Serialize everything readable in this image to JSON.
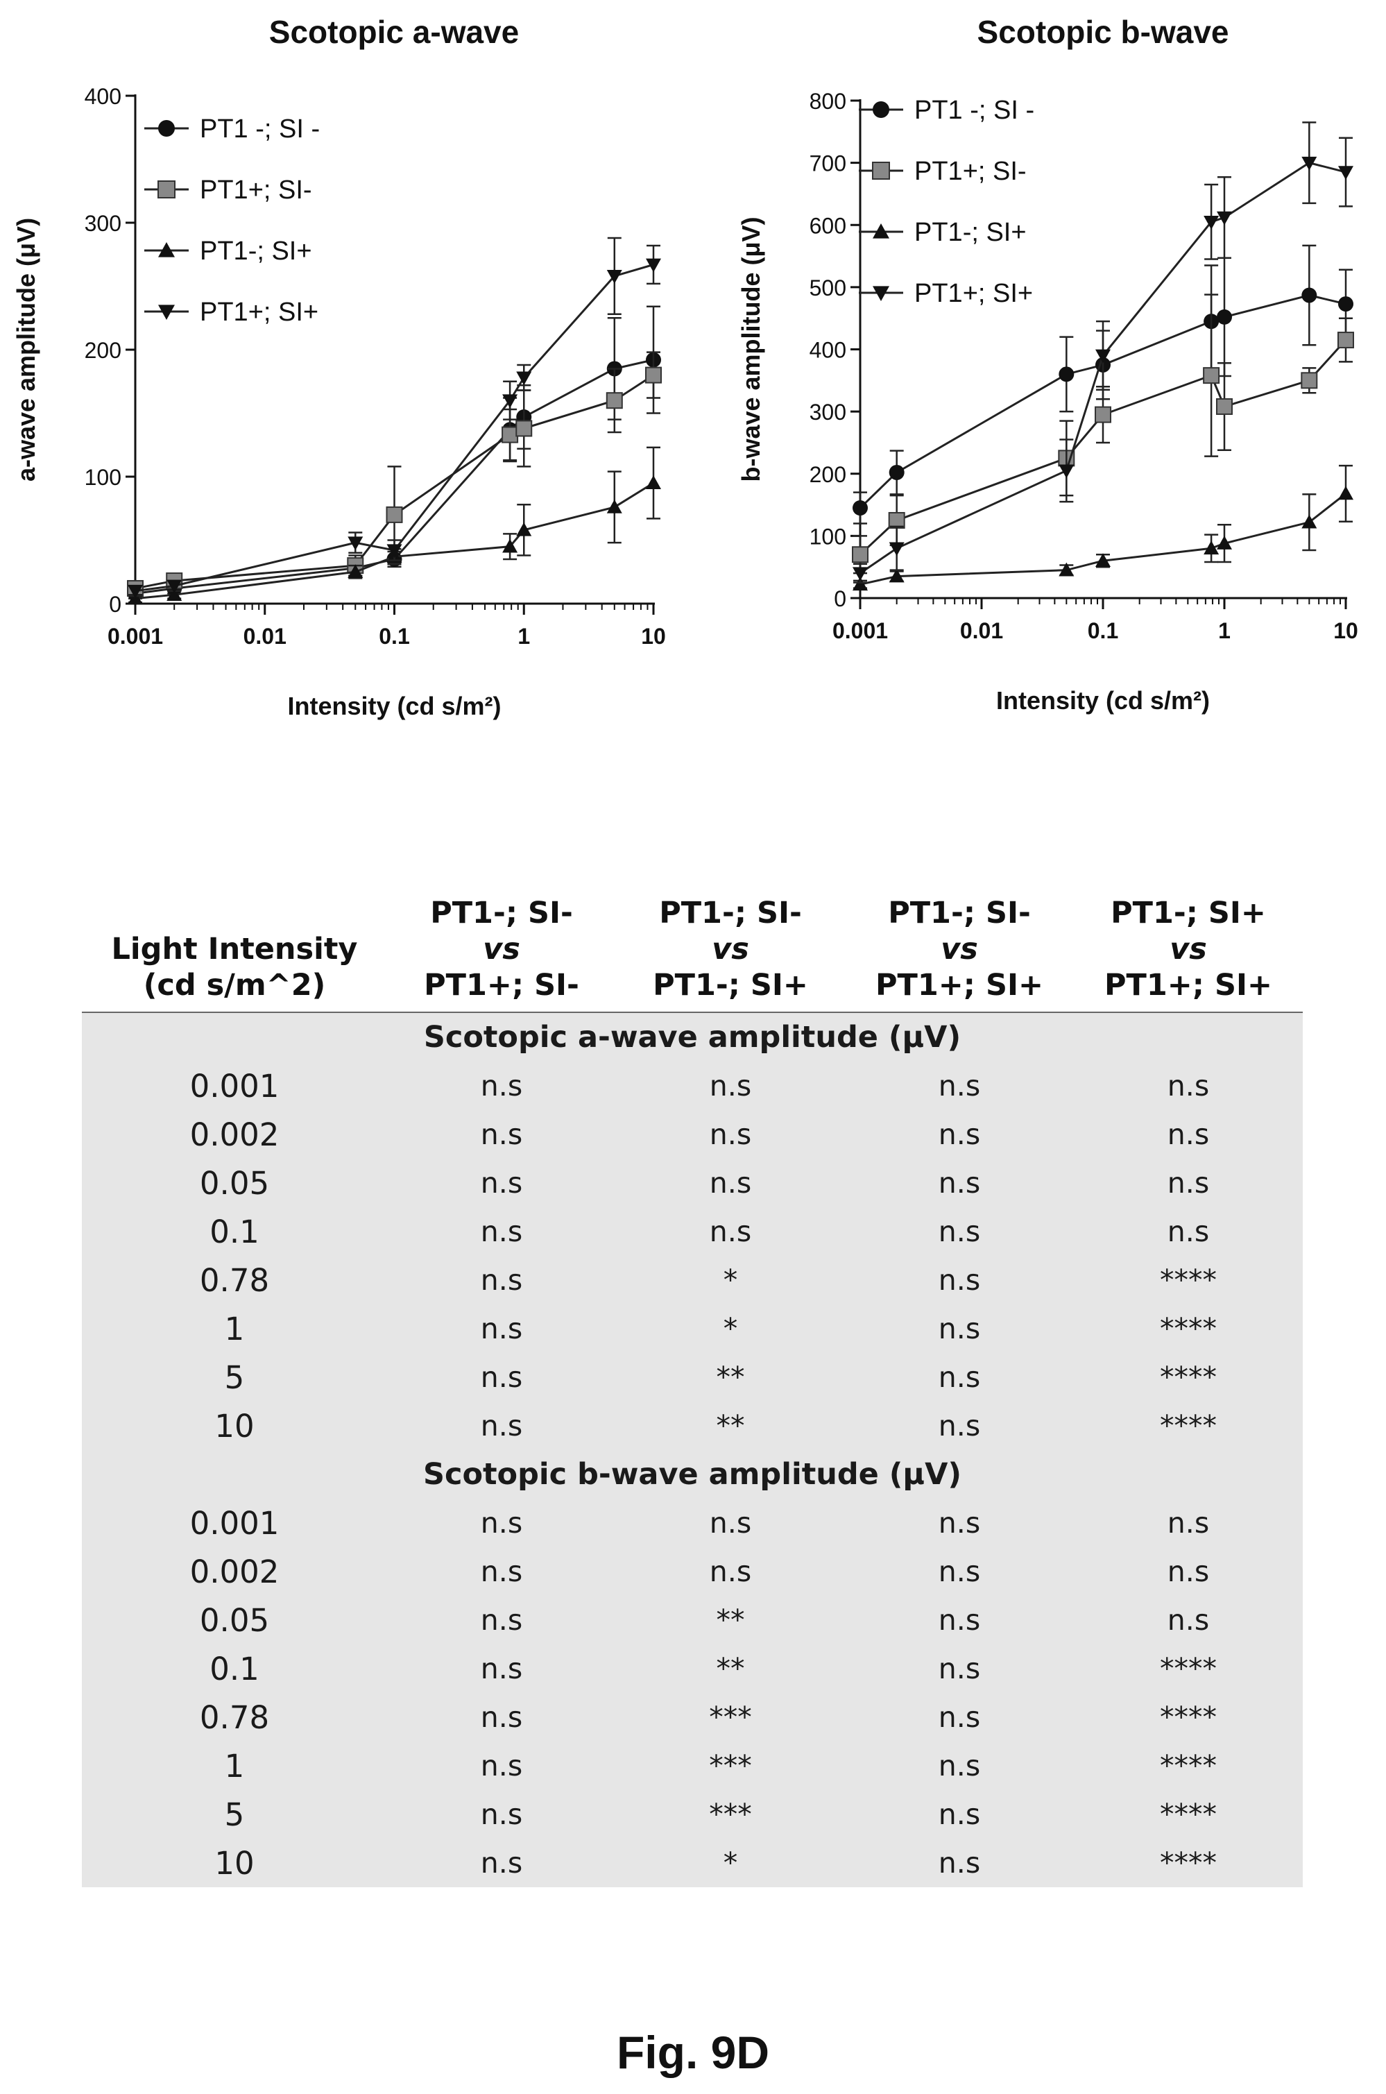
{
  "chart_data": [
    {
      "type": "line",
      "title": "Scotopic a-wave",
      "xlabel": "Intensity (cd s/m²)",
      "ylabel": "a-wave amplitude (μV)",
      "x_scale": "log",
      "xlim": [
        0.001,
        10
      ],
      "ylim": [
        0,
        400
      ],
      "x_ticks": [
        0.001,
        0.01,
        0.1,
        1,
        10
      ],
      "x_tick_labels": [
        "0.001",
        "0.01",
        "0.1",
        "1",
        "10"
      ],
      "y_ticks": [
        0,
        100,
        200,
        300,
        400
      ],
      "y_tick_labels": [
        "0",
        "100",
        "200",
        "300",
        "400"
      ],
      "grid": false,
      "legend_position": "top-left",
      "series": [
        {
          "name": "PT1 -; SI -",
          "marker": "circle",
          "x": [
            0.001,
            0.002,
            0.05,
            0.1,
            0.78,
            1,
            5,
            10
          ],
          "y": [
            8,
            12,
            28,
            35,
            137,
            147,
            185,
            192
          ],
          "err": [
            4,
            4,
            6,
            6,
            25,
            25,
            40,
            42
          ]
        },
        {
          "name": "PT1+; SI-",
          "marker": "square",
          "x": [
            0.001,
            0.002,
            0.05,
            0.1,
            0.78,
            1,
            5,
            10
          ],
          "y": [
            12,
            18,
            30,
            70,
            133,
            138,
            160,
            180
          ],
          "err": [
            4,
            5,
            8,
            38,
            20,
            30,
            25,
            18
          ]
        },
        {
          "name": "PT1-; SI+",
          "marker": "triangle",
          "x": [
            0.001,
            0.002,
            0.05,
            0.1,
            0.78,
            1,
            5,
            10
          ],
          "y": [
            4,
            7,
            25,
            37,
            45,
            58,
            76,
            95
          ],
          "err": [
            3,
            3,
            5,
            6,
            10,
            20,
            28,
            28
          ]
        },
        {
          "name": "PT1+; SI+",
          "marker": "down-triangle",
          "x": [
            0.001,
            0.002,
            0.05,
            0.1,
            0.78,
            1,
            5,
            10
          ],
          "y": [
            10,
            14,
            48,
            42,
            160,
            178,
            258,
            267
          ],
          "err": [
            4,
            4,
            8,
            8,
            15,
            10,
            30,
            15
          ]
        }
      ]
    },
    {
      "type": "line",
      "title": "Scotopic b-wave",
      "xlabel": "Intensity (cd s/m²)",
      "ylabel": "b-wave amplitude (μV)",
      "x_scale": "log",
      "xlim": [
        0.001,
        10
      ],
      "ylim": [
        0,
        800
      ],
      "x_ticks": [
        0.001,
        0.01,
        0.1,
        1,
        10
      ],
      "x_tick_labels": [
        "0.001",
        "0.01",
        "0.1",
        "1",
        "10"
      ],
      "y_ticks": [
        0,
        100,
        200,
        300,
        400,
        500,
        600,
        700,
        800
      ],
      "y_tick_labels": [
        "0",
        "100",
        "200",
        "300",
        "400",
        "500",
        "600",
        "700",
        "800"
      ],
      "grid": false,
      "legend_position": "top-left",
      "series": [
        {
          "name": "PT1 -; SI -",
          "marker": "circle",
          "x": [
            0.001,
            0.002,
            0.05,
            0.1,
            0.78,
            1,
            5,
            10
          ],
          "y": [
            145,
            202,
            360,
            375,
            445,
            452,
            487,
            473
          ],
          "err": [
            25,
            35,
            60,
            55,
            90,
            95,
            80,
            55
          ]
        },
        {
          "name": "PT1+; SI-",
          "marker": "square",
          "x": [
            0.001,
            0.002,
            0.05,
            0.1,
            0.78,
            1,
            5,
            10
          ],
          "y": [
            70,
            125,
            225,
            295,
            358,
            308,
            350,
            415
          ],
          "err": [
            30,
            40,
            60,
            45,
            130,
            70,
            20,
            35
          ]
        },
        {
          "name": "PT1-; SI+",
          "marker": "triangle",
          "x": [
            0.001,
            0.002,
            0.05,
            0.1,
            0.78,
            1,
            5,
            10
          ],
          "y": [
            22,
            35,
            45,
            60,
            80,
            88,
            122,
            168
          ],
          "err": [
            6,
            8,
            8,
            10,
            22,
            30,
            45,
            45
          ]
        },
        {
          "name": "PT1+; SI+",
          "marker": "down-triangle",
          "x": [
            0.001,
            0.002,
            0.05,
            0.1,
            0.78,
            1,
            5,
            10
          ],
          "y": [
            40,
            80,
            205,
            390,
            605,
            612,
            700,
            685
          ],
          "err": [
            15,
            35,
            50,
            55,
            60,
            65,
            65,
            55
          ]
        }
      ]
    }
  ],
  "table": {
    "header": {
      "intensity": [
        "Light Intensity",
        "(cd s/m^2)"
      ],
      "comparisons": [
        [
          "PT1-; SI-",
          "vs",
          "PT1+; SI-"
        ],
        [
          "PT1-; SI-",
          "vs",
          "PT1-; SI+"
        ],
        [
          "PT1-; SI-",
          "vs",
          "PT1+; SI+"
        ],
        [
          "PT1-; SI+",
          "vs",
          "PT1+; SI+"
        ]
      ]
    },
    "sections": [
      {
        "title": "Scotopic a-wave amplitude (μV)",
        "rows": [
          [
            "0.001",
            "n.s",
            "n.s",
            "n.s",
            "n.s"
          ],
          [
            "0.002",
            "n.s",
            "n.s",
            "n.s",
            "n.s"
          ],
          [
            "0.05",
            "n.s",
            "n.s",
            "n.s",
            "n.s"
          ],
          [
            "0.1",
            "n.s",
            "n.s",
            "n.s",
            "n.s"
          ],
          [
            "0.78",
            "n.s",
            "*",
            "n.s",
            "****"
          ],
          [
            "1",
            "n.s",
            "*",
            "n.s",
            "****"
          ],
          [
            "5",
            "n.s",
            "**",
            "n.s",
            "****"
          ],
          [
            "10",
            "n.s",
            "**",
            "n.s",
            "****"
          ]
        ]
      },
      {
        "title": "Scotopic b-wave amplitude (μV)",
        "rows": [
          [
            "0.001",
            "n.s",
            "n.s",
            "n.s",
            "n.s"
          ],
          [
            "0.002",
            "n.s",
            "n.s",
            "n.s",
            "n.s"
          ],
          [
            "0.05",
            "n.s",
            "**",
            "n.s",
            "n.s"
          ],
          [
            "0.1",
            "n.s",
            "**",
            "n.s",
            "****"
          ],
          [
            "0.78",
            "n.s",
            "***",
            "n.s",
            "****"
          ],
          [
            "1",
            "n.s",
            "***",
            "n.s",
            "****"
          ],
          [
            "5",
            "n.s",
            "***",
            "n.s",
            "****"
          ],
          [
            "10",
            "n.s",
            "*",
            "n.s",
            "****"
          ]
        ]
      }
    ]
  },
  "figure_label": "Fig. 9D"
}
